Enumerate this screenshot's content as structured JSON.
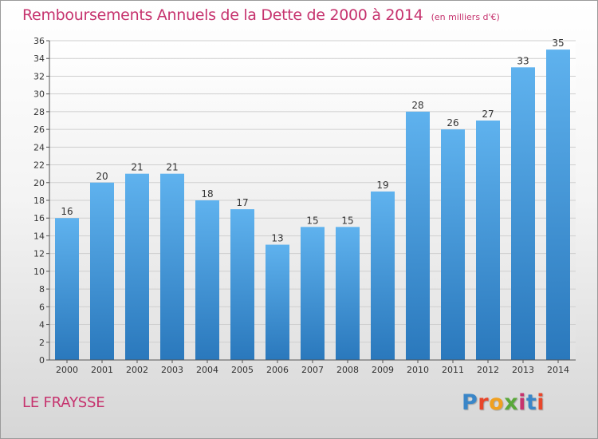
{
  "header": {
    "title": "Remboursements Annuels de la Dette de 2000 à 2014",
    "unit": "(en milliers d'€)"
  },
  "footer": {
    "commune": "LE FRAYSSE",
    "logo_text": "Proxiti",
    "logo_colors": [
      "#3a86c8",
      "#e8462a",
      "#f0a020",
      "#5aa83a",
      "#c6336e",
      "#3a86c8",
      "#e8462a"
    ]
  },
  "colors": {
    "accent": "#c6336e",
    "bar_light": "#5fb2ee",
    "bar_dark": "#2a78bc"
  },
  "chart_data": {
    "type": "bar",
    "title": "Remboursements Annuels de la Dette de 2000 à 2014",
    "subtitle": "(en milliers d'€)",
    "categories": [
      "2000",
      "2001",
      "2002",
      "2003",
      "2004",
      "2005",
      "2006",
      "2007",
      "2008",
      "2009",
      "2010",
      "2011",
      "2012",
      "2013",
      "2014"
    ],
    "values": [
      16,
      20,
      21,
      21,
      18,
      17,
      13,
      15,
      15,
      19,
      28,
      26,
      27,
      33,
      35
    ],
    "xlabel": "",
    "ylabel": "",
    "ylim": [
      0,
      36
    ],
    "yticks": [
      0,
      2,
      4,
      6,
      8,
      10,
      12,
      14,
      16,
      18,
      20,
      22,
      24,
      26,
      28,
      30,
      32,
      34,
      36
    ],
    "grid": true,
    "legend": "none"
  }
}
